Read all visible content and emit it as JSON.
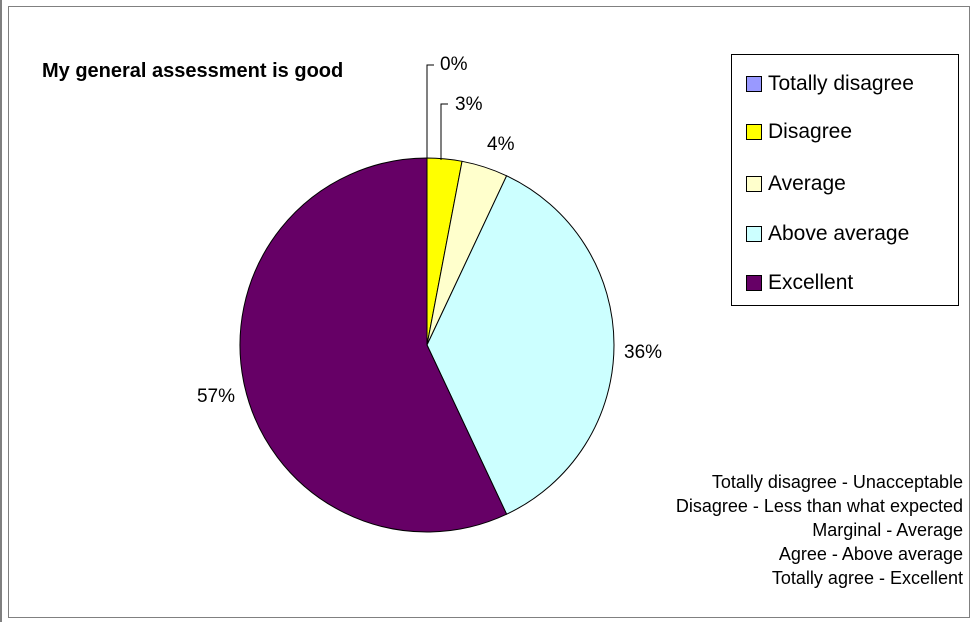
{
  "chart_data": {
    "type": "pie",
    "title": "My general assessment is good",
    "categories": [
      "Totally disagree",
      "Disagree",
      "Average",
      "Above average",
      "Excellent"
    ],
    "values": [
      0,
      3,
      4,
      36,
      57
    ],
    "labels": [
      "0%",
      "3%",
      "4%",
      "36%",
      "57%"
    ],
    "colors": [
      "#9999ff",
      "#ffff00",
      "#ffffcc",
      "#ccffff",
      "#660066"
    ],
    "legend_position": "top-right",
    "legend": {
      "items": [
        {
          "label": "Totally disagree",
          "color": "#9999ff"
        },
        {
          "label": "Disagree",
          "color": "#ffff00"
        },
        {
          "label": "Average",
          "color": "#ffffcc"
        },
        {
          "label": "Above average",
          "color": "#ccffff"
        },
        {
          "label": "Excellent",
          "color": "#660066"
        }
      ]
    }
  },
  "note": {
    "lines": [
      "Totally disagree - Unacceptable",
      "Disagree - Less than what expected",
      "Marginal - Average",
      "Agree - Above average",
      "Totally agree - Excellent"
    ]
  }
}
